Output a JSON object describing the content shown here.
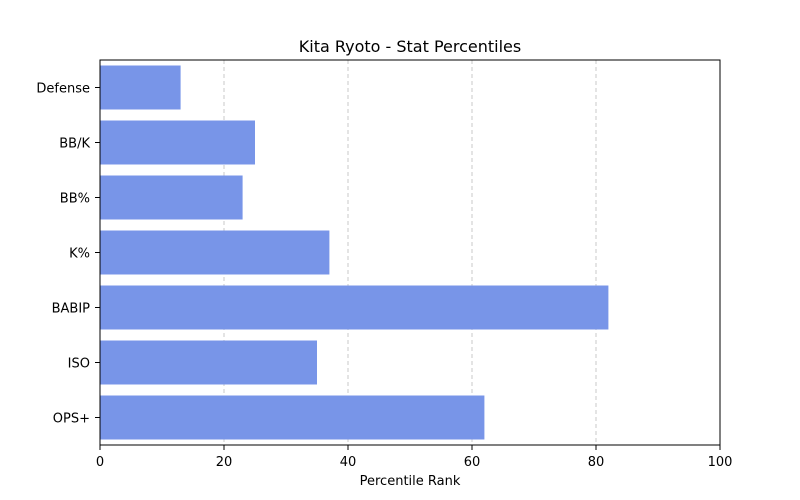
{
  "chart_data": {
    "type": "bar",
    "orientation": "horizontal",
    "title": "Kita Ryoto - Stat Percentiles",
    "xlabel": "Percentile Rank",
    "ylabel": "",
    "categories": [
      "Defense",
      "BB/K",
      "BB%",
      "K%",
      "BABIP",
      "ISO",
      "OPS+"
    ],
    "values": [
      13,
      25,
      23,
      37,
      82,
      35,
      62
    ],
    "xlim": [
      0,
      100
    ],
    "xticks": [
      "0",
      "20",
      "40",
      "60",
      "80",
      "100"
    ],
    "grid": "x-dashed",
    "colors": {
      "bar": "#7895E8",
      "grid": "#c8c8c8"
    }
  }
}
